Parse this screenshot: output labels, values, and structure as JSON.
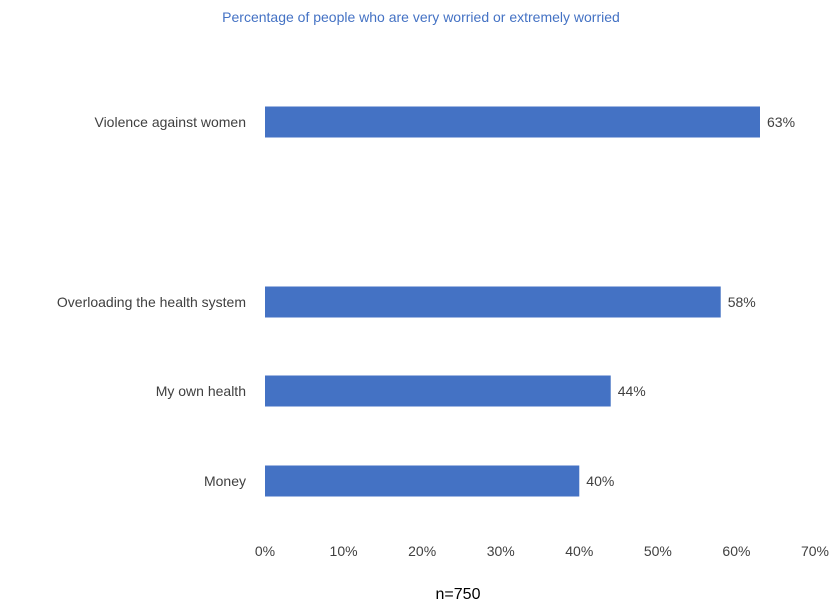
{
  "chart_data": {
    "type": "bar",
    "orientation": "horizontal",
    "title": "Percentage of people who are very worried or extremely worried",
    "categories": [
      "Violence against women",
      "Overloading the health system",
      "My own health",
      "Money"
    ],
    "values": [
      63,
      58,
      44,
      40
    ],
    "data_labels": [
      "63%",
      "58%",
      "44%",
      "40%"
    ],
    "xlim": [
      0,
      70
    ],
    "x_ticks": [
      "0%",
      "10%",
      "20%",
      "30%",
      "40%",
      "50%",
      "60%",
      "70%"
    ],
    "xlabel": "",
    "ylabel": "",
    "grid": false,
    "legend": "none",
    "bar_color": "#4472c4",
    "footnote": "n=750"
  }
}
